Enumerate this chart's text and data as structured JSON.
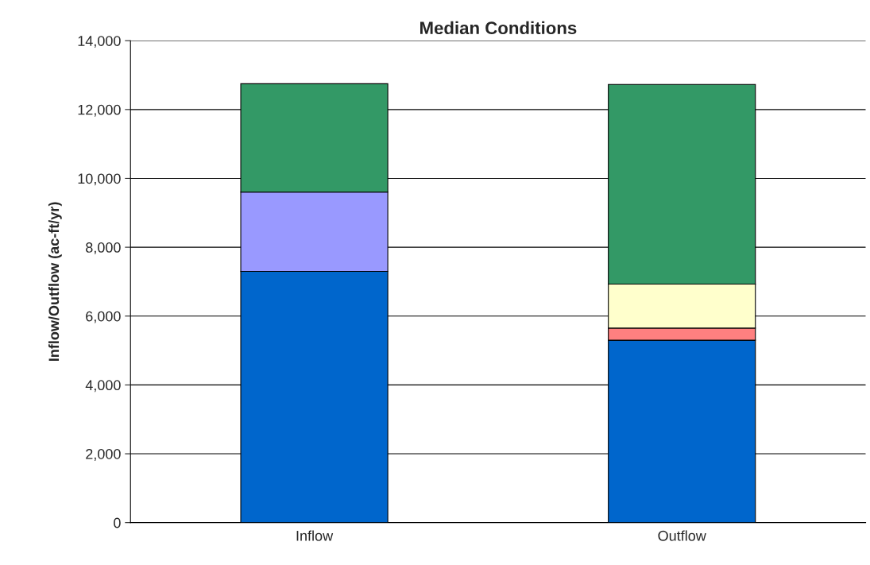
{
  "chart_data": {
    "type": "bar",
    "title": "Median Conditions",
    "ylabel": "Inflow/Outflow (ac-ft/yr)",
    "categories": [
      "Inflow",
      "Outflow"
    ],
    "stacked": true,
    "series": [
      {
        "color": "#0066cc",
        "values": [
          7300,
          5300
        ]
      },
      {
        "color": "#9999ff",
        "values": [
          2300,
          null
        ]
      },
      {
        "color": "#ff8080",
        "values": [
          null,
          350
        ]
      },
      {
        "color": "#ffffcc",
        "values": [
          null,
          1280
        ]
      },
      {
        "color": "#339966",
        "values": [
          3150,
          5800
        ]
      }
    ],
    "ylim": [
      0,
      14000
    ],
    "yticks": [
      {
        "value": 0,
        "label": "0"
      },
      {
        "value": 2000,
        "label": "2,000"
      },
      {
        "value": 4000,
        "label": "4,000"
      },
      {
        "value": 6000,
        "label": "6,000"
      },
      {
        "value": 8000,
        "label": "8,000"
      },
      {
        "value": 10000,
        "label": "10,000"
      },
      {
        "value": 12000,
        "label": "12,000"
      },
      {
        "value": 14000,
        "label": "14,000"
      }
    ],
    "grid": "y"
  }
}
